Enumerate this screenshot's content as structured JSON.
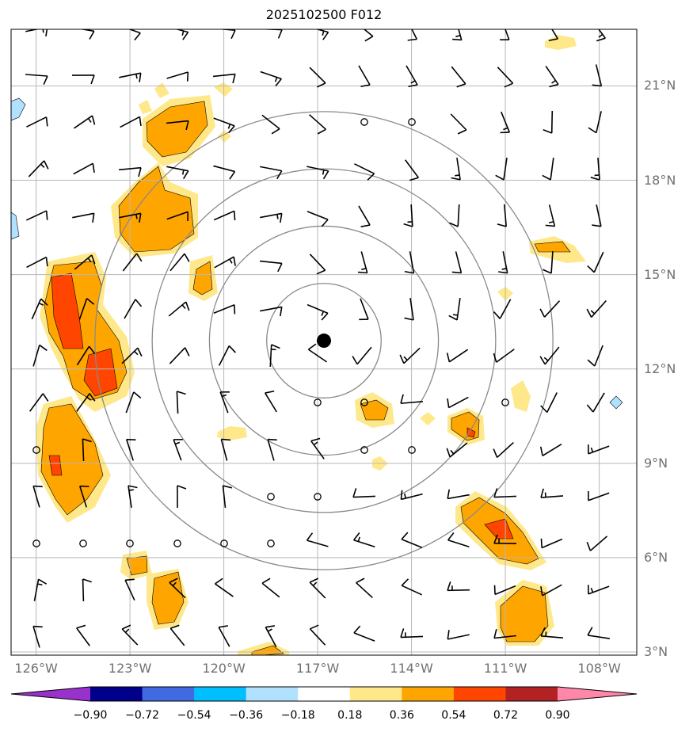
{
  "title": "2025102500 F012",
  "map": {
    "lon_range": [
      -126.8,
      -106.8
    ],
    "lat_range": [
      2.9,
      22.8
    ],
    "center": {
      "lon": -116.8,
      "lat": 12.9
    },
    "range_ring_count": 4,
    "lat_labels": [
      {
        "lat": 21,
        "text": "21°N"
      },
      {
        "lat": 18,
        "text": "18°N"
      },
      {
        "lat": 15,
        "text": "15°N"
      },
      {
        "lat": 12,
        "text": "12°N"
      },
      {
        "lat": 9,
        "text": "9°N"
      },
      {
        "lat": 6,
        "text": "6°N"
      },
      {
        "lat": 3,
        "text": "3°N"
      }
    ],
    "lon_labels": [
      {
        "lon": -126,
        "text": "126°W"
      },
      {
        "lon": -123,
        "text": "123°W"
      },
      {
        "lon": -120,
        "text": "120°W"
      },
      {
        "lon": -117,
        "text": "117°W"
      },
      {
        "lon": -114,
        "text": "114°W"
      },
      {
        "lon": -111,
        "text": "111°W"
      },
      {
        "lon": -108,
        "text": "108°W"
      }
    ]
  },
  "colorbar": {
    "levels": [
      "−0.90",
      "−0.72",
      "−0.54",
      "−0.36",
      "−0.18",
      "0.18",
      "0.36",
      "0.54",
      "0.72",
      "0.90"
    ],
    "colors": [
      "#9932cc",
      "#00008b",
      "#4169e1",
      "#00bfff",
      "#b0e2ff",
      "#ffffff",
      "#ffe88a",
      "#ffa500",
      "#ff4500",
      "#b22222",
      "#ff88aa"
    ]
  },
  "fill_colors": {
    "light": "#ffe88a",
    "mid": "#ffa500",
    "high": "#ff4500",
    "neg": "#b0e2ff"
  }
}
